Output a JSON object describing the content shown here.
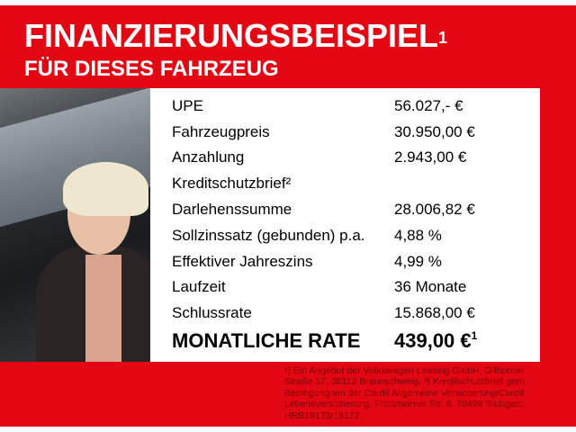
{
  "header": {
    "title": "FINANZIERUNGSBEISPIEL",
    "title_sup": "1",
    "subtitle": "FÜR DIESES FAHRZEUG"
  },
  "rows": [
    {
      "label": "UPE",
      "value": "56.027,- €"
    },
    {
      "label": "Fahrzeugpreis",
      "value": "30.950,00 €"
    },
    {
      "label": "Anzahlung",
      "value": "2.943,00 €"
    },
    {
      "label": "Kreditschutzbrief²",
      "value": ""
    },
    {
      "label": "Darlehenssumme",
      "value": "28.006,82 €"
    },
    {
      "label": "Sollzinssatz (gebunden) p.a.",
      "value": "4,88 %"
    },
    {
      "label": "Effektiver Jahreszins",
      "value": "4,99 %"
    },
    {
      "label": "Laufzeit",
      "value": "36 Monate"
    },
    {
      "label": "Schlussrate",
      "value": "15.868,00 €"
    }
  ],
  "total": {
    "label": "MONATLICHE RATE",
    "value": "439,00 €",
    "sup": "1"
  },
  "footnote": "¹) Ein Angebot der Volkswagen Leasing GmbH, Gifhorner Straße 57, 38112 Braunschweig. ²) Kreditschutzbrief gem. Bedingungnen der Cardif Allgemeine Versicherung/Cardif Lebensversicherung, Friolzheimer Str. 6, 70499 Stuttgart; HRB18173/18172.",
  "colors": {
    "brand_red": "#e30613"
  }
}
